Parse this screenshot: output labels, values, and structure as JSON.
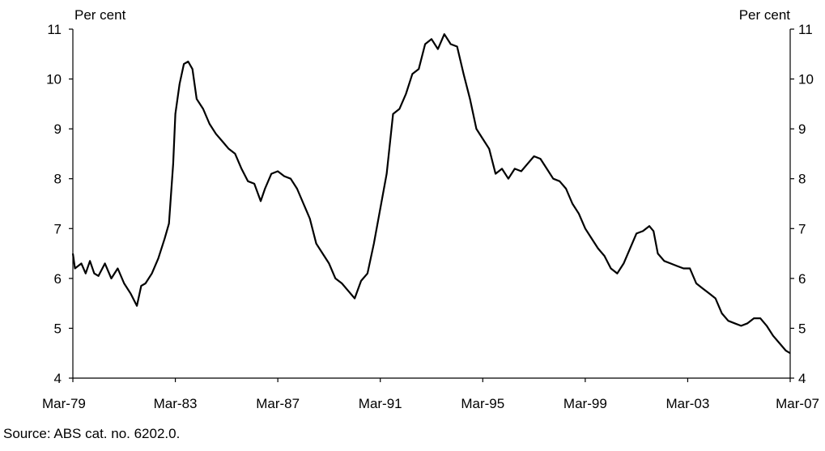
{
  "source_note": "Source: ABS cat. no. 6202.0.",
  "chart_data": {
    "type": "line",
    "title": "",
    "y_unit_left": "Per cent",
    "y_unit_right": "Per cent",
    "ylim": [
      4,
      11
    ],
    "y_ticks": [
      4,
      5,
      6,
      7,
      8,
      9,
      10,
      11
    ],
    "x_range": [
      "1979-03",
      "2007-03"
    ],
    "x_tick_labels": [
      "Mar-79",
      "Mar-83",
      "Mar-87",
      "Mar-91",
      "Mar-95",
      "Mar-99",
      "Mar-03",
      "Mar-07"
    ],
    "grid": false,
    "series": [
      {
        "color": "#000000",
        "points": [
          [
            "1979-03",
            6.5
          ],
          [
            "1979-04",
            6.2
          ],
          [
            "1979-07",
            6.3
          ],
          [
            "1979-09",
            6.1
          ],
          [
            "1979-11",
            6.35
          ],
          [
            "1980-01",
            6.1
          ],
          [
            "1980-03",
            6.05
          ],
          [
            "1980-06",
            6.3
          ],
          [
            "1980-09",
            6.0
          ],
          [
            "1980-12",
            6.2
          ],
          [
            "1981-03",
            5.9
          ],
          [
            "1981-06",
            5.7
          ],
          [
            "1981-09",
            5.45
          ],
          [
            "1981-11",
            5.85
          ],
          [
            "1982-01",
            5.9
          ],
          [
            "1982-04",
            6.1
          ],
          [
            "1982-07",
            6.4
          ],
          [
            "1982-10",
            6.8
          ],
          [
            "1982-12",
            7.1
          ],
          [
            "1983-02",
            8.3
          ],
          [
            "1983-03",
            9.3
          ],
          [
            "1983-05",
            9.9
          ],
          [
            "1983-07",
            10.3
          ],
          [
            "1983-09",
            10.35
          ],
          [
            "1983-11",
            10.2
          ],
          [
            "1984-01",
            9.6
          ],
          [
            "1984-04",
            9.4
          ],
          [
            "1984-07",
            9.1
          ],
          [
            "1984-10",
            8.9
          ],
          [
            "1985-01",
            8.75
          ],
          [
            "1985-04",
            8.6
          ],
          [
            "1985-07",
            8.5
          ],
          [
            "1985-10",
            8.2
          ],
          [
            "1986-01",
            7.95
          ],
          [
            "1986-04",
            7.9
          ],
          [
            "1986-07",
            7.55
          ],
          [
            "1986-09",
            7.8
          ],
          [
            "1986-12",
            8.1
          ],
          [
            "1987-03",
            8.15
          ],
          [
            "1987-06",
            8.05
          ],
          [
            "1987-09",
            8.0
          ],
          [
            "1987-12",
            7.8
          ],
          [
            "1988-03",
            7.5
          ],
          [
            "1988-06",
            7.2
          ],
          [
            "1988-09",
            6.7
          ],
          [
            "1988-12",
            6.5
          ],
          [
            "1989-03",
            6.3
          ],
          [
            "1989-06",
            6.0
          ],
          [
            "1989-09",
            5.9
          ],
          [
            "1989-12",
            5.75
          ],
          [
            "1990-03",
            5.6
          ],
          [
            "1990-06",
            5.95
          ],
          [
            "1990-09",
            6.1
          ],
          [
            "1990-12",
            6.7
          ],
          [
            "1991-03",
            7.4
          ],
          [
            "1991-06",
            8.1
          ],
          [
            "1991-09",
            9.3
          ],
          [
            "1991-12",
            9.4
          ],
          [
            "1992-03",
            9.7
          ],
          [
            "1992-06",
            10.1
          ],
          [
            "1992-09",
            10.2
          ],
          [
            "1992-12",
            10.7
          ],
          [
            "1993-03",
            10.8
          ],
          [
            "1993-06",
            10.6
          ],
          [
            "1993-09",
            10.9
          ],
          [
            "1993-12",
            10.7
          ],
          [
            "1994-03",
            10.65
          ],
          [
            "1994-06",
            10.1
          ],
          [
            "1994-09",
            9.6
          ],
          [
            "1994-12",
            9.0
          ],
          [
            "1995-03",
            8.8
          ],
          [
            "1995-06",
            8.6
          ],
          [
            "1995-09",
            8.1
          ],
          [
            "1995-12",
            8.2
          ],
          [
            "1996-03",
            8.0
          ],
          [
            "1996-06",
            8.2
          ],
          [
            "1996-09",
            8.15
          ],
          [
            "1996-12",
            8.3
          ],
          [
            "1997-03",
            8.45
          ],
          [
            "1997-06",
            8.4
          ],
          [
            "1997-09",
            8.2
          ],
          [
            "1997-12",
            8.0
          ],
          [
            "1998-03",
            7.95
          ],
          [
            "1998-06",
            7.8
          ],
          [
            "1998-09",
            7.5
          ],
          [
            "1998-12",
            7.3
          ],
          [
            "1999-03",
            7.0
          ],
          [
            "1999-06",
            6.8
          ],
          [
            "1999-09",
            6.6
          ],
          [
            "1999-12",
            6.45
          ],
          [
            "2000-03",
            6.2
          ],
          [
            "2000-06",
            6.1
          ],
          [
            "2000-09",
            6.3
          ],
          [
            "2000-12",
            6.6
          ],
          [
            "2001-03",
            6.9
          ],
          [
            "2001-06",
            6.95
          ],
          [
            "2001-09",
            7.05
          ],
          [
            "2001-11",
            6.95
          ],
          [
            "2002-01",
            6.5
          ],
          [
            "2002-04",
            6.35
          ],
          [
            "2002-07",
            6.3
          ],
          [
            "2002-10",
            6.25
          ],
          [
            "2003-01",
            6.2
          ],
          [
            "2003-04",
            6.2
          ],
          [
            "2003-07",
            5.9
          ],
          [
            "2003-10",
            5.8
          ],
          [
            "2004-01",
            5.7
          ],
          [
            "2004-04",
            5.6
          ],
          [
            "2004-07",
            5.3
          ],
          [
            "2004-10",
            5.15
          ],
          [
            "2005-01",
            5.1
          ],
          [
            "2005-04",
            5.05
          ],
          [
            "2005-07",
            5.1
          ],
          [
            "2005-10",
            5.2
          ],
          [
            "2006-01",
            5.2
          ],
          [
            "2006-04",
            5.05
          ],
          [
            "2006-07",
            4.85
          ],
          [
            "2006-10",
            4.7
          ],
          [
            "2007-01",
            4.55
          ],
          [
            "2007-03",
            4.5
          ]
        ]
      }
    ]
  }
}
